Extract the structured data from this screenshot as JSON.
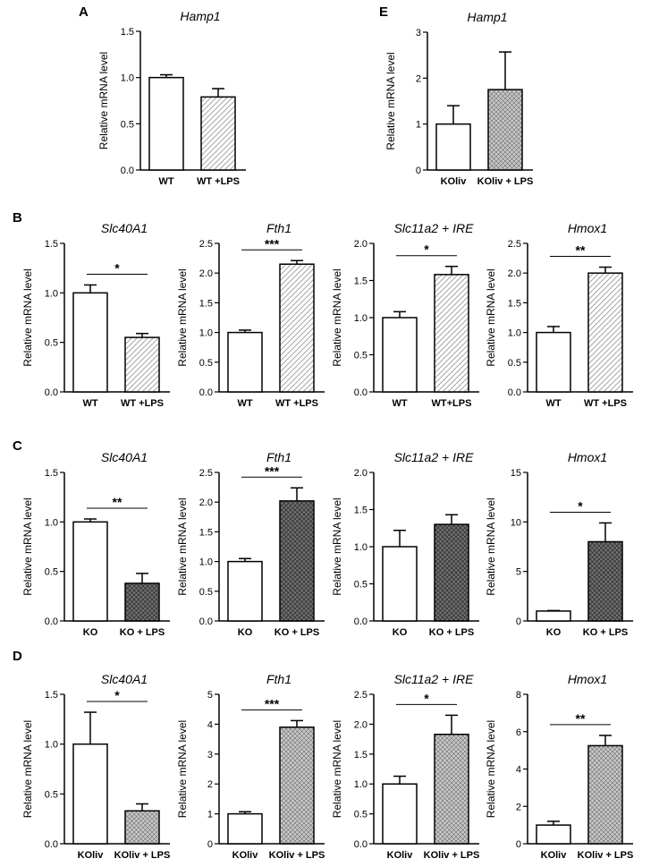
{
  "figure": {
    "panel_letters": [
      {
        "id": "A",
        "label": "A"
      },
      {
        "id": "E",
        "label": "E"
      },
      {
        "id": "B",
        "label": "B"
      },
      {
        "id": "C",
        "label": "C"
      },
      {
        "id": "D",
        "label": "D"
      }
    ]
  },
  "colors": {
    "axis": "#000000",
    "bar_stroke": "#000000",
    "white_fill": "#ffffff",
    "light_dots": "#9a9a9a",
    "light_gray_fill": "#c8c8c8",
    "dark_gray_fill": "#707070",
    "hatch": "#2a2a2a"
  },
  "chart_data": [
    {
      "id": "A-Hamp1",
      "panel": "A",
      "type": "bar",
      "title": "Hamp1",
      "ylabel": "Relative mRNA level",
      "categories": [
        "WT",
        "WT +LPS"
      ],
      "values": [
        1.0,
        0.79
      ],
      "errors": [
        0.03,
        0.09
      ],
      "fills": [
        "white",
        "light_dots"
      ],
      "ylim": [
        0,
        1.5
      ],
      "yticks": [
        "0.0",
        "0.5",
        "1.0",
        "1.5"
      ],
      "significance": ""
    },
    {
      "id": "E-Hamp1",
      "panel": "E",
      "type": "bar",
      "title": "Hamp1",
      "ylabel": "Relative mRNA level",
      "categories": [
        "KOliv",
        "KOliv + LPS"
      ],
      "values": [
        1.0,
        1.75
      ],
      "errors": [
        0.4,
        0.82
      ],
      "fills": [
        "white",
        "light_hatch"
      ],
      "ylim": [
        0,
        3
      ],
      "yticks": [
        "0",
        "1",
        "2",
        "3"
      ],
      "significance": ""
    },
    {
      "id": "B-Slc40A1",
      "panel": "B",
      "type": "bar",
      "title": "Slc40A1",
      "ylabel": "Relative mRNA level",
      "categories": [
        "WT",
        "WT +LPS"
      ],
      "values": [
        1.0,
        0.55
      ],
      "errors": [
        0.08,
        0.04
      ],
      "fills": [
        "white",
        "light_dots"
      ],
      "ylim": [
        0,
        1.5
      ],
      "yticks": [
        "0.0",
        "0.5",
        "1.0",
        "1.5"
      ],
      "significance": "*"
    },
    {
      "id": "B-Fth1",
      "panel": "B",
      "type": "bar",
      "title": "Fth1",
      "ylabel": "Relative mRNA level",
      "categories": [
        "WT",
        "WT +LPS"
      ],
      "values": [
        1.0,
        2.15
      ],
      "errors": [
        0.04,
        0.06
      ],
      "fills": [
        "white",
        "light_dots"
      ],
      "ylim": [
        0,
        2.5
      ],
      "yticks": [
        "0.0",
        "0.5",
        "1.0",
        "1.5",
        "2.0",
        "2.5"
      ],
      "significance": "***"
    },
    {
      "id": "B-Slc11a2",
      "panel": "B",
      "type": "bar",
      "title": "Slc11a2 + IRE",
      "ylabel": "Relative mRNA level",
      "categories": [
        "WT",
        "WT+LPS"
      ],
      "values": [
        1.0,
        1.58
      ],
      "errors": [
        0.08,
        0.11
      ],
      "fills": [
        "white",
        "light_dots"
      ],
      "ylim": [
        0,
        2.0
      ],
      "yticks": [
        "0.0",
        "0.5",
        "1.0",
        "1.5",
        "2.0"
      ],
      "significance": "*"
    },
    {
      "id": "B-Hmox1",
      "panel": "B",
      "type": "bar",
      "title": "Hmox1",
      "ylabel": "Relative mRNA level",
      "categories": [
        "WT",
        "WT +LPS"
      ],
      "values": [
        1.0,
        2.0
      ],
      "errors": [
        0.1,
        0.1
      ],
      "fills": [
        "white",
        "light_dots"
      ],
      "ylim": [
        0,
        2.5
      ],
      "yticks": [
        "0.0",
        "0.5",
        "1.0",
        "1.5",
        "2.0",
        "2.5"
      ],
      "significance": "**"
    },
    {
      "id": "C-Slc40A1",
      "panel": "C",
      "type": "bar",
      "title": "Slc40A1",
      "ylabel": "Relative mRNA level",
      "categories": [
        "KO",
        "KO + LPS"
      ],
      "values": [
        1.0,
        0.38
      ],
      "errors": [
        0.03,
        0.1
      ],
      "fills": [
        "white",
        "dark_hatch"
      ],
      "ylim": [
        0,
        1.5
      ],
      "yticks": [
        "0.0",
        "0.5",
        "1.0",
        "1.5"
      ],
      "significance": "**"
    },
    {
      "id": "C-Fth1",
      "panel": "C",
      "type": "bar",
      "title": "Fth1",
      "ylabel": "Relative mRNA level",
      "categories": [
        "KO",
        "KO + LPS"
      ],
      "values": [
        1.0,
        2.02
      ],
      "errors": [
        0.05,
        0.22
      ],
      "fills": [
        "white",
        "dark_hatch"
      ],
      "ylim": [
        0,
        2.5
      ],
      "yticks": [
        "0.0",
        "0.5",
        "1.0",
        "1.5",
        "2.0",
        "2.5"
      ],
      "significance": "***"
    },
    {
      "id": "C-Slc11a2",
      "panel": "C",
      "type": "bar",
      "title": "Slc11a2 + IRE",
      "ylabel": "Relative mRNA level",
      "categories": [
        "KO",
        "KO + LPS"
      ],
      "values": [
        1.0,
        1.3
      ],
      "errors": [
        0.22,
        0.13
      ],
      "fills": [
        "white",
        "dark_hatch"
      ],
      "ylim": [
        0,
        2.0
      ],
      "yticks": [
        "0.0",
        "0.5",
        "1.0",
        "1.5",
        "2.0"
      ],
      "significance": ""
    },
    {
      "id": "C-Hmox1",
      "panel": "C",
      "type": "bar",
      "title": "Hmox1",
      "ylabel": "Relative mRNA level",
      "categories": [
        "KO",
        "KO + LPS"
      ],
      "values": [
        1.0,
        8.0
      ],
      "errors": [
        0.05,
        1.9
      ],
      "fills": [
        "white",
        "dark_hatch"
      ],
      "ylim": [
        0,
        15
      ],
      "yticks": [
        "0",
        "5",
        "10",
        "15"
      ],
      "significance": "*"
    },
    {
      "id": "D-Slc40A1",
      "panel": "D",
      "type": "bar",
      "title": "Slc40A1",
      "ylabel": "Relative mRNA level",
      "categories": [
        "KOliv",
        "KOliv + LPS"
      ],
      "values": [
        1.0,
        0.33
      ],
      "errors": [
        0.32,
        0.07
      ],
      "fills": [
        "white",
        "light_hatch"
      ],
      "ylim": [
        0,
        1.5
      ],
      "yticks": [
        "0.0",
        "0.5",
        "1.0",
        "1.5"
      ],
      "significance": "*"
    },
    {
      "id": "D-Fth1",
      "panel": "D",
      "type": "bar",
      "title": "Fth1",
      "ylabel": "Relative mRNA level",
      "categories": [
        "KOliv",
        "KOliv + LPS"
      ],
      "values": [
        1.0,
        3.9
      ],
      "errors": [
        0.07,
        0.22
      ],
      "fills": [
        "white",
        "light_hatch"
      ],
      "ylim": [
        0,
        5
      ],
      "yticks": [
        "0",
        "1",
        "2",
        "3",
        "4",
        "5"
      ],
      "significance": "***"
    },
    {
      "id": "D-Slc11a2",
      "panel": "D",
      "type": "bar",
      "title": "Slc11a2 + IRE",
      "ylabel": "Relative mRNA level",
      "categories": [
        "KOliv",
        "KOliv + LPS"
      ],
      "values": [
        1.0,
        1.83
      ],
      "errors": [
        0.13,
        0.32
      ],
      "fills": [
        "white",
        "light_hatch"
      ],
      "ylim": [
        0,
        2.5
      ],
      "yticks": [
        "0.0",
        "0.5",
        "1.0",
        "1.5",
        "2.0",
        "2.5"
      ],
      "significance": "*"
    },
    {
      "id": "D-Hmox1",
      "panel": "D",
      "type": "bar",
      "title": "Hmox1",
      "ylabel": "Relative mRNA level",
      "categories": [
        "KOliv",
        "KOliv + LPS"
      ],
      "values": [
        1.0,
        5.25
      ],
      "errors": [
        0.2,
        0.55
      ],
      "fills": [
        "white",
        "light_hatch"
      ],
      "ylim": [
        0,
        8
      ],
      "yticks": [
        "0",
        "2",
        "4",
        "6",
        "8"
      ],
      "significance": "**"
    }
  ]
}
